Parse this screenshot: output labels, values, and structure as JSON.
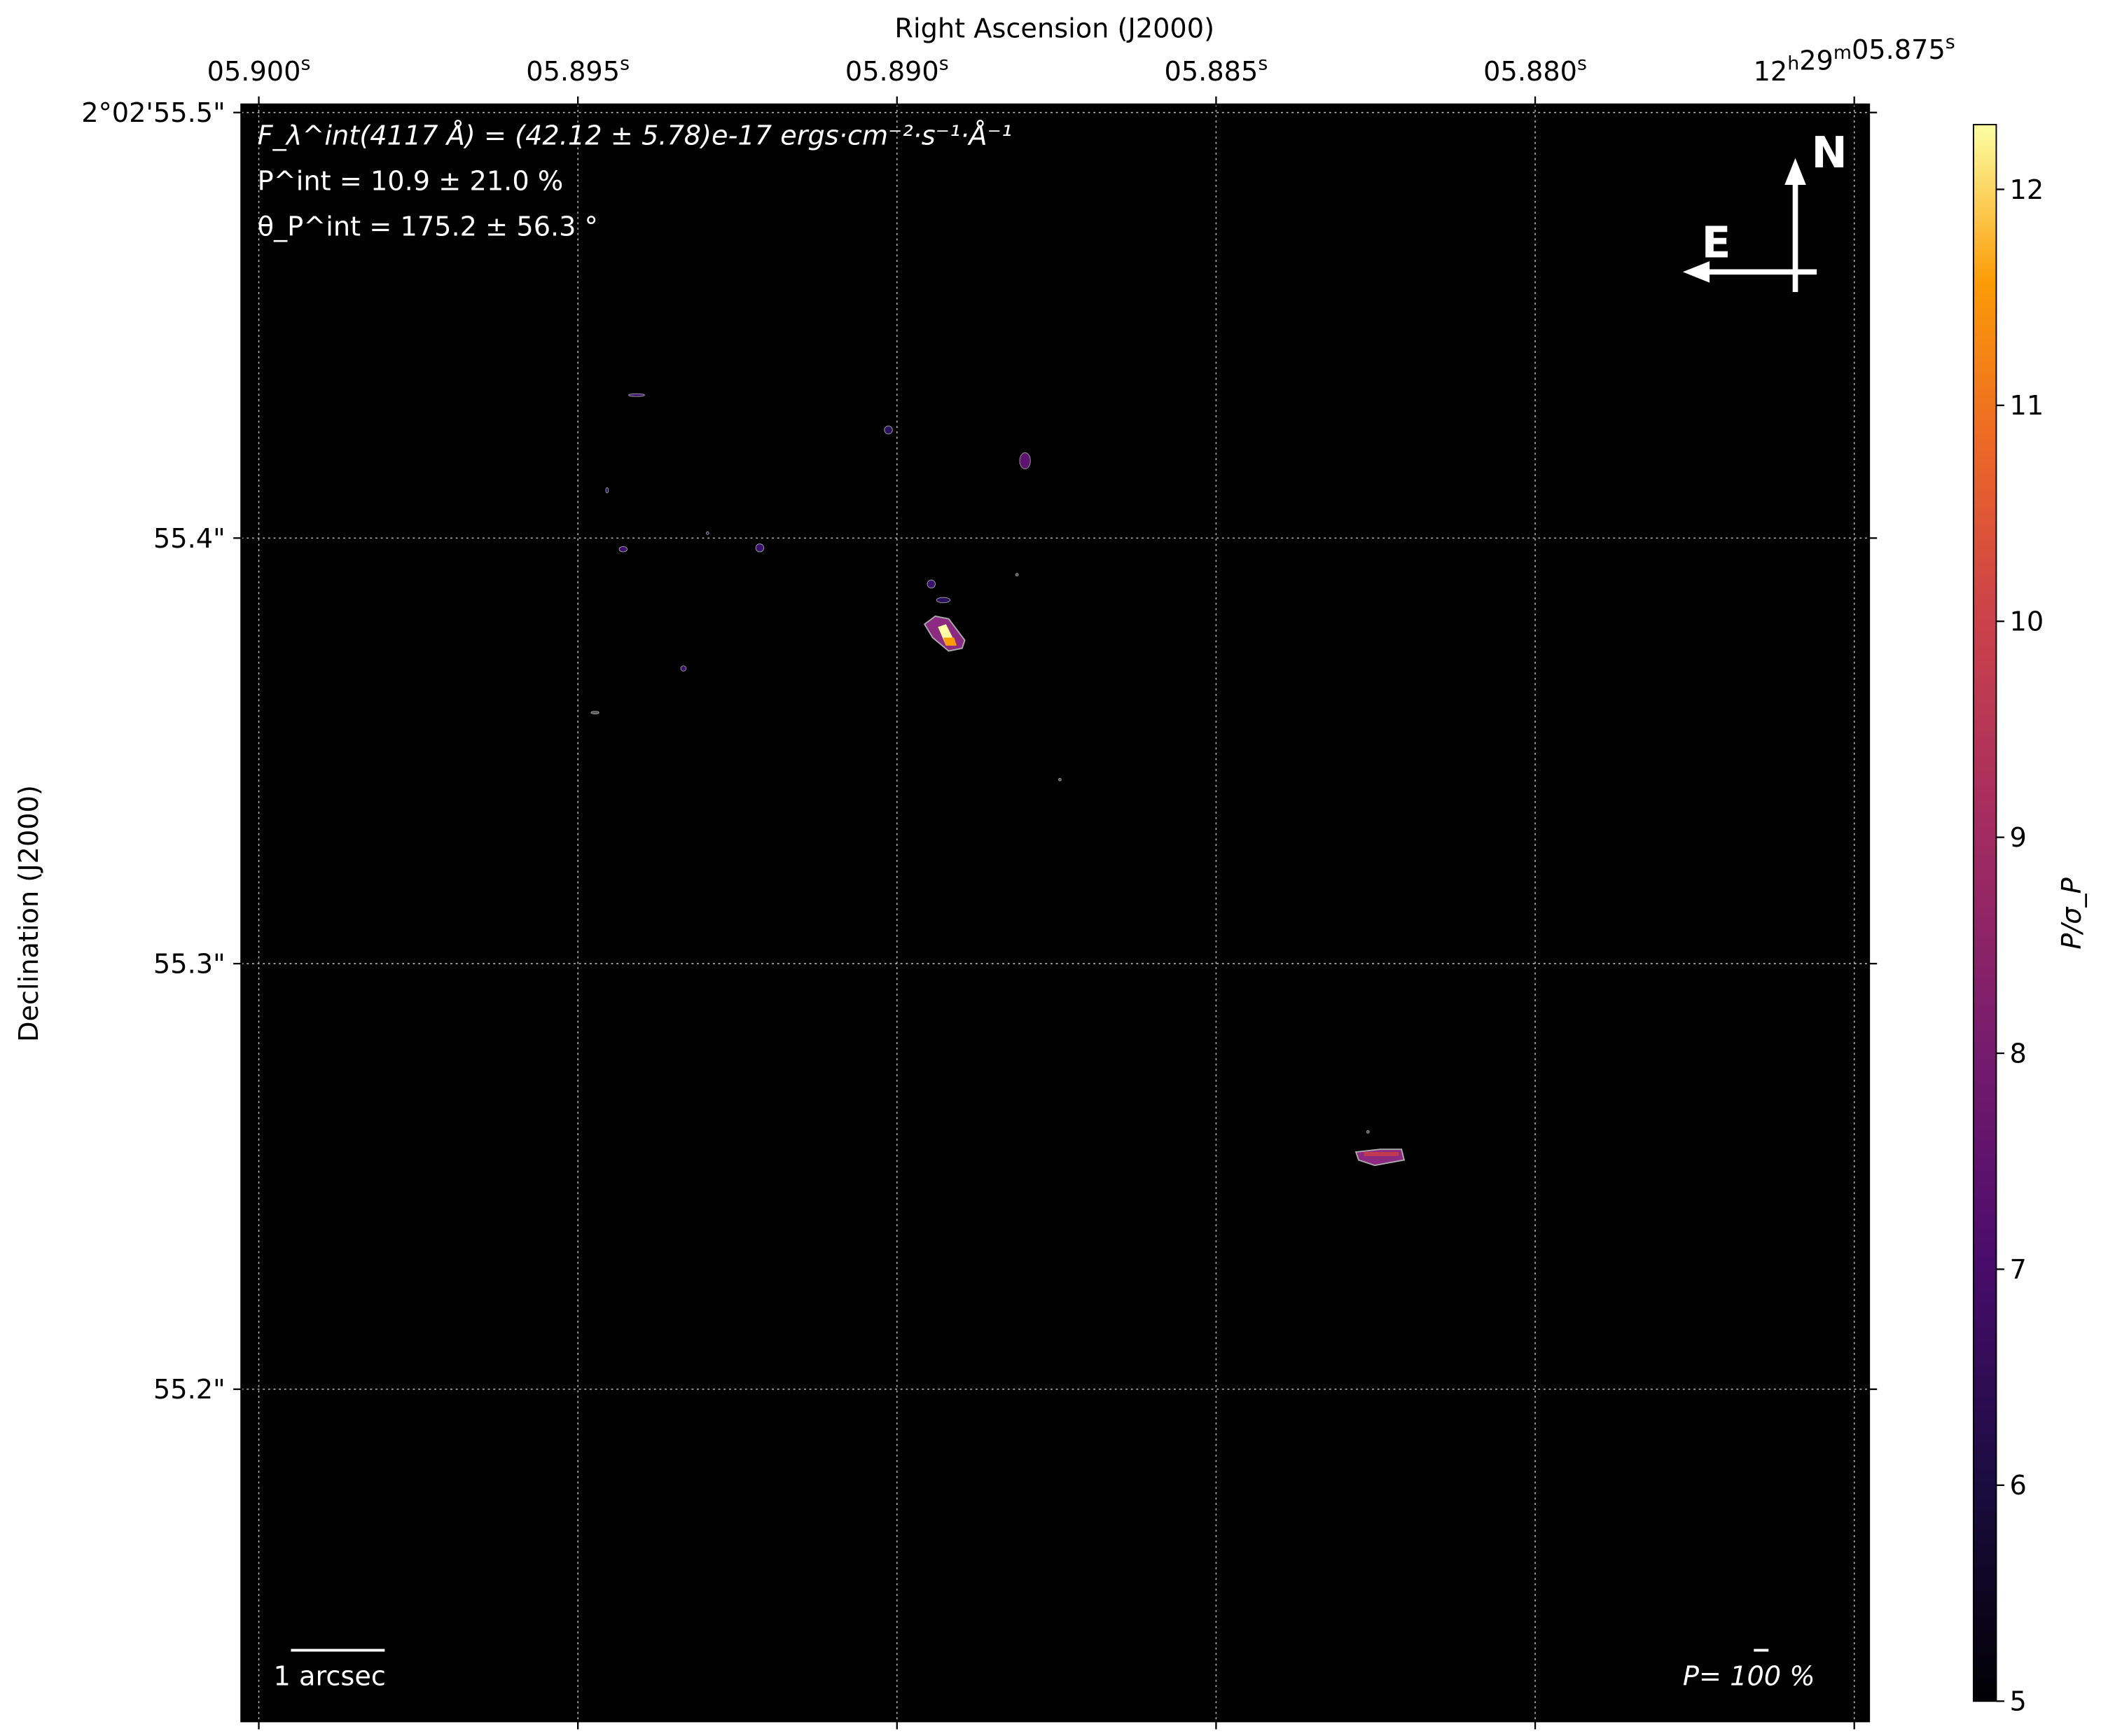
{
  "chart_data": {
    "type": "heatmap",
    "xlabel": "Right Ascension (J2000)",
    "ylabel": "Declination (J2000)",
    "x_ticks": [
      {
        "base": "05.900",
        "sup": "s"
      },
      {
        "base": "05.895",
        "sup": "s"
      },
      {
        "base": "05.890",
        "sup": "s"
      },
      {
        "base": "05.885",
        "sup": "s"
      },
      {
        "base": "05.880",
        "sup": "s"
      },
      {
        "base": "12",
        "sup": "h",
        "base2": "29",
        "sup2": "m",
        "base3": "05.875",
        "sup3": "s"
      }
    ],
    "y_ticks": [
      "2°02'55.5\"",
      "55.4\"",
      "55.3\"",
      "55.2\""
    ],
    "grid": true,
    "colorbar": {
      "label": "P/σ_P",
      "colormap": "inferno",
      "range": [
        5,
        12.3
      ],
      "ticks": [
        "5",
        "6",
        "7",
        "8",
        "9",
        "10",
        "11",
        "12"
      ]
    },
    "annotations": {
      "flux": "F_λ^int(4117 Å) = (42.12 ± 5.78)e-17 ergs·cm⁻²·s⁻¹·Å⁻¹",
      "pol_degree": "P^int = 10.9 ± 21.0 %",
      "pol_angle": "θ_P^int = 175.2 ± 56.3 °",
      "scale_bar": "1 arcsec",
      "vector_scale": "P= 100 %",
      "north": "N",
      "east": "E"
    }
  }
}
